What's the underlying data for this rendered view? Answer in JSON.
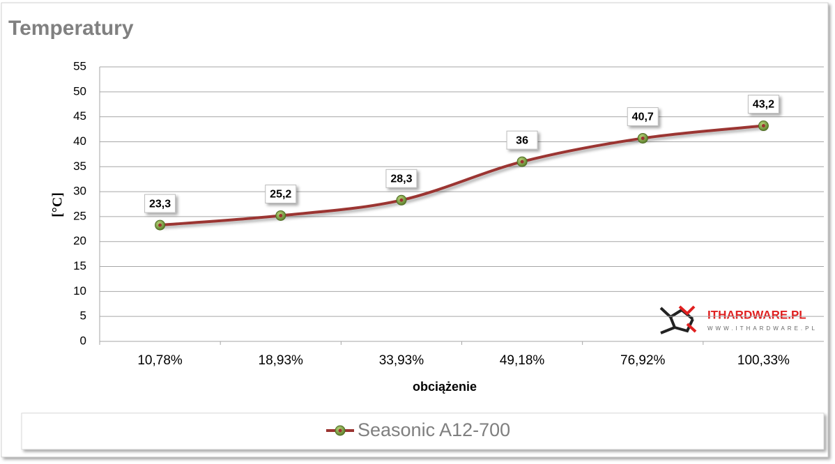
{
  "chart_data": {
    "type": "line",
    "title": "Temperatury",
    "categories": [
      "10,78%",
      "18,93%",
      "33,93%",
      "49,18%",
      "76,92%",
      "100,33%"
    ],
    "series": [
      {
        "name": "Seasonic A12-700",
        "color": "#9b3431",
        "marker_color": "#6f9a3c",
        "values": [
          23.3,
          25.2,
          28.3,
          36,
          40.7,
          43.2
        ],
        "value_labels": [
          "23,3",
          "25,2",
          "28,3",
          "36",
          "40,7",
          "43,2"
        ]
      }
    ],
    "ylim": [
      0,
      55
    ],
    "yticks": [
      0,
      5,
      10,
      15,
      20,
      25,
      30,
      35,
      40,
      45,
      50,
      55
    ],
    "ylabel": "[°C]",
    "xlabel": "obciążenie",
    "grid": true,
    "legend": "bottom",
    "watermark": {
      "logo": "ITHARDWARE.PL",
      "url": "WWW.ITHARDWARE.PL"
    }
  }
}
